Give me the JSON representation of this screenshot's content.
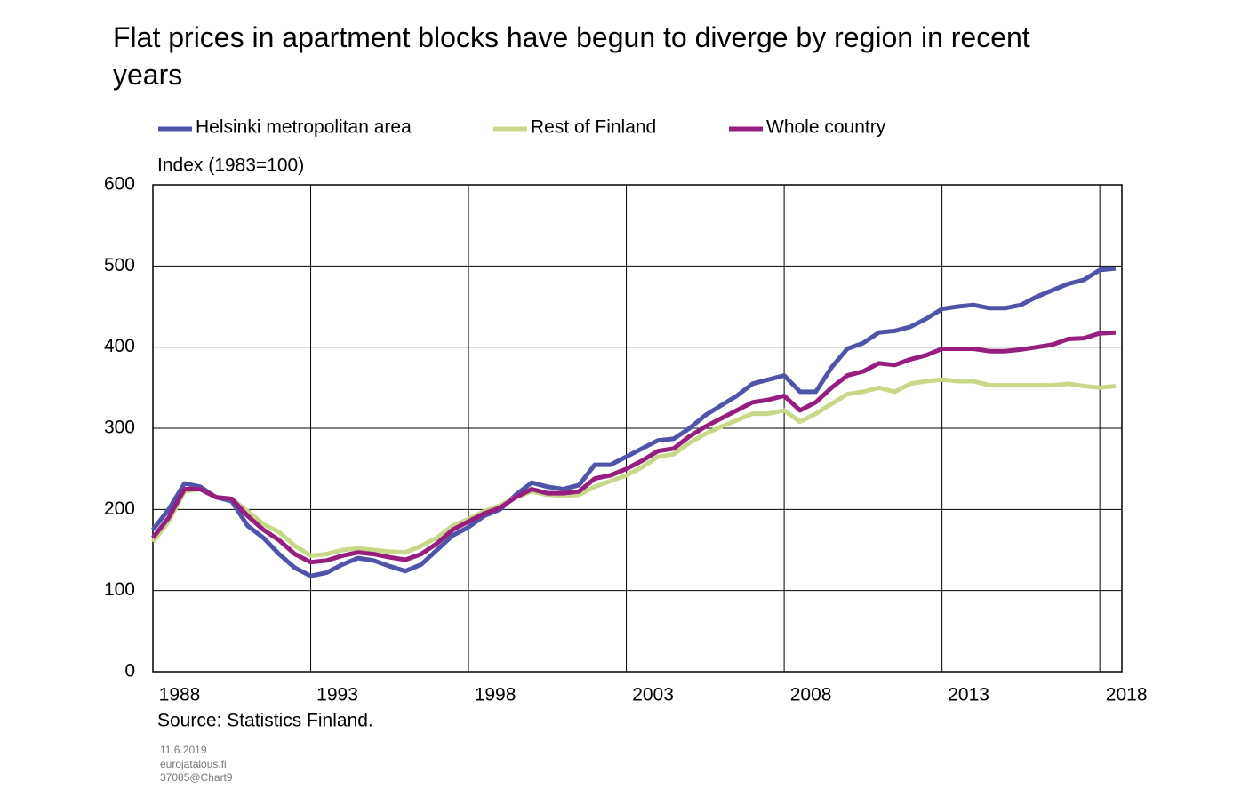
{
  "chart_data": {
    "type": "line",
    "title": "Flat prices in apartment blocks have begun to diverge by region in recent years",
    "y_label": "Index (1983=100)",
    "source": "Source: Statistics Finland.",
    "footnotes": [
      "11.6.2019",
      "eurojatalous.fi",
      "37085@Chart9"
    ],
    "x": [
      1988,
      1988.5,
      1989,
      1989.5,
      1990,
      1990.5,
      1991,
      1991.5,
      1992,
      1992.5,
      1993,
      1993.5,
      1994,
      1994.5,
      1995,
      1995.5,
      1996,
      1996.5,
      1997,
      1997.5,
      1998,
      1998.5,
      1999,
      1999.5,
      2000,
      2000.5,
      2001,
      2001.5,
      2002,
      2002.5,
      2003,
      2003.5,
      2004,
      2004.5,
      2005,
      2005.5,
      2006,
      2006.5,
      2007,
      2007.5,
      2008,
      2008.5,
      2009,
      2009.5,
      2010,
      2010.5,
      2011,
      2011.5,
      2012,
      2012.5,
      2013,
      2013.5,
      2014,
      2014.5,
      2015,
      2015.5,
      2016,
      2016.5,
      2017,
      2017.5,
      2018,
      2018.5
    ],
    "series": [
      {
        "name": "Helsinki metropolitan area",
        "color": "#4f54a8",
        "values": [
          175,
          200,
          232,
          228,
          215,
          210,
          180,
          165,
          145,
          128,
          118,
          122,
          132,
          140,
          137,
          130,
          124,
          132,
          150,
          168,
          178,
          192,
          200,
          218,
          233,
          228,
          225,
          230,
          255,
          255,
          265,
          275,
          285,
          287,
          300,
          316,
          328,
          340,
          355,
          360,
          365,
          345,
          345,
          375,
          398,
          405,
          418,
          420,
          425,
          435,
          447,
          450,
          452,
          448,
          448,
          452,
          462,
          470,
          478,
          483,
          495,
          497
        ]
      },
      {
        "name": "Rest of Finland",
        "color": "#c8d88a",
        "values": [
          160,
          185,
          222,
          225,
          215,
          213,
          198,
          182,
          172,
          155,
          143,
          145,
          150,
          152,
          150,
          148,
          147,
          155,
          165,
          180,
          188,
          198,
          205,
          215,
          222,
          218,
          217,
          218,
          228,
          235,
          242,
          252,
          265,
          268,
          282,
          293,
          302,
          310,
          318,
          318,
          322,
          308,
          318,
          330,
          342,
          345,
          350,
          345,
          355,
          358,
          360,
          358,
          358,
          353,
          353,
          353,
          353,
          353,
          355,
          352,
          350,
          352
        ]
      },
      {
        "name": "Whole country",
        "color": "#961e7e",
        "values": [
          165,
          190,
          225,
          225,
          215,
          213,
          192,
          175,
          162,
          145,
          135,
          137,
          143,
          147,
          145,
          141,
          138,
          145,
          158,
          175,
          185,
          195,
          202,
          215,
          225,
          220,
          220,
          222,
          238,
          242,
          250,
          260,
          272,
          275,
          290,
          302,
          312,
          322,
          332,
          335,
          340,
          322,
          332,
          350,
          365,
          370,
          380,
          378,
          385,
          390,
          398,
          398,
          398,
          395,
          395,
          397,
          400,
          403,
          410,
          411,
          417,
          418
        ]
      }
    ],
    "xlim": [
      1988,
      2018.7
    ],
    "xticks": [
      1988,
      1993,
      1998,
      2003,
      2008,
      2013,
      2018
    ],
    "ylim": [
      0,
      600
    ],
    "yticks": [
      0,
      100,
      200,
      300,
      400,
      500,
      600
    ],
    "grid": true
  }
}
